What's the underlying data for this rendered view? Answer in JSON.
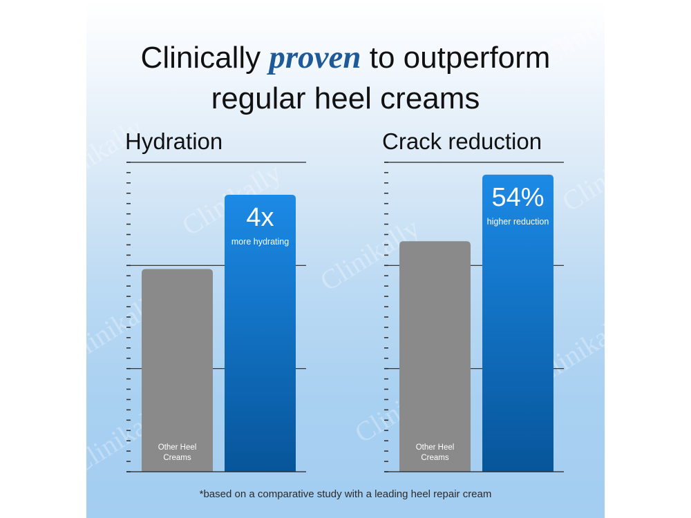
{
  "headline": {
    "part1": "Clinically",
    "emphasis": "proven",
    "part2": "to outperform",
    "line2": "regular heel creams"
  },
  "watermark_text": "Clinikally",
  "footnote": "*based on a comparative study with a leading heel repair cream",
  "colors": {
    "other_bar": "#8a8a8a",
    "product_bar_top": "#1c8ae6",
    "product_bar_bottom": "#07559a",
    "emphasis": "#1f5a98"
  },
  "chart_data": [
    {
      "type": "bar",
      "title": "Hydration",
      "ylim": [
        0,
        1
      ],
      "grid": true,
      "categories": [
        "Other Heel Creams",
        ""
      ],
      "values": [
        0.655,
        0.895
      ],
      "bar_labels": [
        {
          "text": "Other Heel\nCreams"
        },
        {
          "big": "4x",
          "small": "more hydrating"
        }
      ]
    },
    {
      "type": "bar",
      "title": "Crack reduction",
      "ylim": [
        0,
        1
      ],
      "grid": true,
      "categories": [
        "Other Heel Creams",
        ""
      ],
      "values": [
        0.745,
        0.96
      ],
      "bar_labels": [
        {
          "text": "Other Heel\nCreams"
        },
        {
          "big": "54%",
          "small": "higher reduction"
        }
      ]
    }
  ]
}
